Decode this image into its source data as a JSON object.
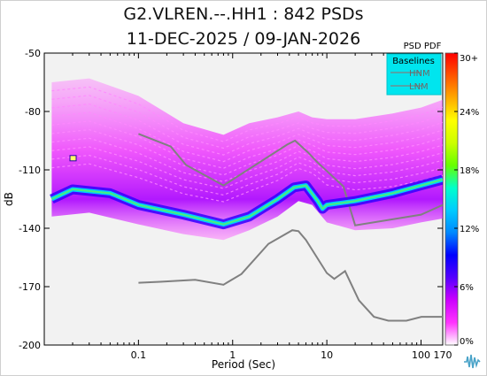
{
  "chart_data": {
    "type": "heatmap",
    "title": "G2.VLREN.--.HH1 : 842 PSDs",
    "subtitle": "11-DEC-2025 / 09-JAN-2026",
    "xlabel": "Period (Sec)",
    "ylabel": "dB",
    "x_scale": "log",
    "xlim": [
      0.01,
      170
    ],
    "ylim": [
      -200,
      -50
    ],
    "x_ticks": [
      0.1,
      1,
      10,
      100,
      170
    ],
    "x_tick_labels": [
      "0.1",
      "1",
      "10",
      "100",
      "170"
    ],
    "y_ticks": [
      -50,
      -80,
      -110,
      -140,
      -170,
      -200
    ],
    "y_tick_labels": [
      "-50",
      "-80",
      "-110",
      "-140",
      "-170",
      "-200"
    ],
    "grid": false,
    "colorbar": {
      "title": "PSD PDF",
      "ticks": [
        0,
        6,
        12,
        18,
        24,
        30
      ],
      "tick_labels": [
        "0%",
        "6%",
        "12%",
        "18%",
        "24%",
        "30+"
      ],
      "colors": [
        "#ffffff",
        "#ff33ff",
        "#cc00ff",
        "#5500ff",
        "#0000ff",
        "#0088ff",
        "#00ccff",
        "#00ffcc",
        "#66ff00",
        "#ccff00",
        "#ffff00",
        "#ffaa00",
        "#ff5500",
        "#ff0000"
      ]
    },
    "legend": {
      "title": "Baselines",
      "position": "top-right",
      "background": "#00e5ee",
      "entries": [
        "HNM",
        "LNM"
      ]
    },
    "series": [
      {
        "name": "HNM",
        "color": "#808080",
        "x": [
          0.1,
          0.22,
          0.32,
          0.8,
          3.8,
          4.6,
          6.3,
          7.9,
          15,
          20,
          100,
          170
        ],
        "y": [
          -91.5,
          -98,
          -107.5,
          -118,
          -97,
          -95,
          -101,
          -106,
          -118.5,
          -138.5,
          -133,
          -128
        ]
      },
      {
        "name": "LNM",
        "color": "#808080",
        "x": [
          0.1,
          0.17,
          0.4,
          0.8,
          1.24,
          2.4,
          4.3,
          5,
          6,
          10,
          12,
          15.6,
          21.9,
          31.6,
          45,
          70,
          101,
          170
        ],
        "y": [
          -168,
          -167.5,
          -166.5,
          -169,
          -163.5,
          -148,
          -141,
          -141.5,
          -146,
          -163,
          -166,
          -162,
          -177,
          -185.5,
          -187.5,
          -187.5,
          -185.5,
          -185.5
        ]
      },
      {
        "name": "PDF mode",
        "color": "#00ccff",
        "x": [
          0.012,
          0.02,
          0.05,
          0.1,
          0.3,
          0.8,
          1.5,
          3,
          4.5,
          6,
          8,
          9,
          10,
          20,
          50,
          100,
          170
        ],
        "y": [
          -125,
          -120,
          -122,
          -128,
          -133,
          -138,
          -134,
          -125,
          -119,
          -118,
          -126,
          -130,
          -128,
          -126,
          -122,
          -118,
          -115
        ]
      }
    ],
    "pdf_envelope": {
      "x": [
        0.012,
        0.03,
        0.1,
        0.3,
        0.8,
        1.5,
        3,
        5,
        7,
        10,
        20,
        50,
        100,
        170
      ],
      "upper": [
        -65,
        -63,
        -72,
        -86,
        -92,
        -86,
        -83,
        -80,
        -83,
        -84,
        -84,
        -81,
        -78,
        -74
      ],
      "lower": [
        -134,
        -132,
        -138,
        -143,
        -146,
        -141,
        -134,
        -126,
        -128,
        -137,
        -141,
        -140,
        -137,
        -135
      ]
    },
    "markers": [
      {
        "x": 0.02,
        "y": -104,
        "color": "#ffff66"
      }
    ]
  }
}
